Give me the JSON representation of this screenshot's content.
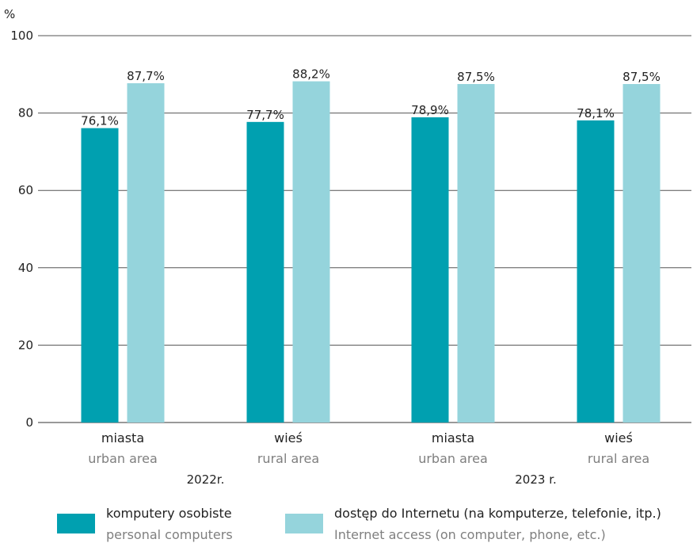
{
  "chart_data": {
    "type": "bar",
    "ylabel": "%",
    "ylim": [
      0,
      100
    ],
    "yticks": [
      0,
      20,
      40,
      60,
      80,
      100
    ],
    "grid": true,
    "categories": [
      {
        "label": "miasta",
        "sublabel": "urban area"
      },
      {
        "label": "wieś",
        "sublabel": "rural area"
      },
      {
        "label": "miasta",
        "sublabel": "urban area"
      },
      {
        "label": "wieś",
        "sublabel": "rural area"
      }
    ],
    "groups": [
      {
        "label": "2022r.",
        "span": [
          0,
          1
        ]
      },
      {
        "label": "2023 r.",
        "span": [
          2,
          3
        ]
      }
    ],
    "series": [
      {
        "name": "komputery osobiste",
        "name_en": "personal computers",
        "color": "#00a0b0",
        "values": [
          76.1,
          77.7,
          78.9,
          78.1
        ],
        "labels": [
          "76,1%",
          "77,7%",
          "78,9%",
          "78,1%"
        ]
      },
      {
        "name": "dostęp do Internetu (na komputerze, telefonie, itp.)",
        "name_en": "Internet access (on computer, phone, etc.)",
        "color": "#95d4dc",
        "values": [
          87.7,
          88.2,
          87.5,
          87.5
        ],
        "labels": [
          "87,7%",
          "88,2%",
          "87,5%",
          "87,5%"
        ]
      }
    ],
    "legend_position": "bottom"
  }
}
